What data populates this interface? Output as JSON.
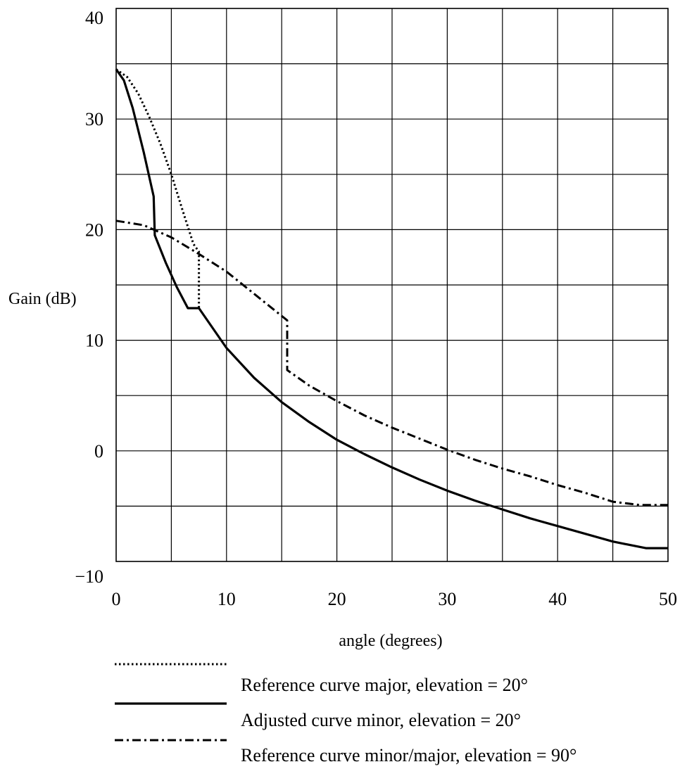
{
  "chart_data": {
    "type": "line",
    "title": "",
    "xlabel": "angle (degrees)",
    "ylabel": "Gain (dB)",
    "xlim": [
      0,
      50
    ],
    "ylim": [
      -10,
      40
    ],
    "x_ticks": [
      0,
      10,
      20,
      30,
      40,
      50
    ],
    "x_tick_labels": [
      "0",
      "10",
      "20",
      "30",
      "40",
      "50"
    ],
    "y_ticks": [
      40,
      30,
      20,
      10,
      0,
      -10
    ],
    "y_tick_labels": [
      "40",
      "30",
      "20",
      "10",
      "0",
      "−10"
    ],
    "x_gridlines": [
      5,
      10,
      15,
      20,
      25,
      30,
      35,
      40,
      45
    ],
    "y_gridlines": [
      35,
      30,
      25,
      20,
      15,
      10,
      5,
      0,
      -5
    ],
    "grid": true,
    "legend_position": "bottom",
    "series": [
      {
        "name": "Reference curve major, elevation = 20°",
        "style": "dotted",
        "color": "#000000",
        "points": [
          [
            0,
            34.5
          ],
          [
            1,
            33.8
          ],
          [
            2,
            32.3
          ],
          [
            3,
            30.2
          ],
          [
            4,
            27.8
          ],
          [
            5,
            25.0
          ],
          [
            6,
            21.8
          ],
          [
            7,
            18.7
          ],
          [
            7.5,
            18.0
          ],
          [
            7.5,
            12.8
          ]
        ]
      },
      {
        "name": "Adjusted curve minor, elevation = 20°",
        "style": "solid",
        "color": "#000000",
        "points": [
          [
            0,
            34.5
          ],
          [
            0.7,
            33.5
          ],
          [
            1.5,
            31.0
          ],
          [
            2.5,
            27.0
          ],
          [
            3.4,
            23.0
          ],
          [
            3.5,
            19.5
          ],
          [
            4.5,
            17.0
          ],
          [
            5.5,
            14.8
          ],
          [
            6.5,
            12.9
          ],
          [
            7.5,
            12.9
          ],
          [
            10,
            9.3
          ],
          [
            12.5,
            6.6
          ],
          [
            15,
            4.4
          ],
          [
            17.5,
            2.6
          ],
          [
            20,
            1.0
          ],
          [
            22.5,
            -0.3
          ],
          [
            25,
            -1.5
          ],
          [
            27.5,
            -2.6
          ],
          [
            30,
            -3.6
          ],
          [
            32.5,
            -4.5
          ],
          [
            35,
            -5.3
          ],
          [
            37.5,
            -6.1
          ],
          [
            40,
            -6.8
          ],
          [
            42.5,
            -7.5
          ],
          [
            45,
            -8.2
          ],
          [
            48,
            -8.8
          ],
          [
            50,
            -8.8
          ]
        ]
      },
      {
        "name": "Reference curve minor/major, elevation = 90°",
        "style": "dash-dot",
        "color": "#000000",
        "points": [
          [
            0,
            20.8
          ],
          [
            2.5,
            20.4
          ],
          [
            5,
            19.3
          ],
          [
            7.5,
            17.8
          ],
          [
            10,
            16.2
          ],
          [
            12.5,
            14.2
          ],
          [
            15.5,
            11.8
          ],
          [
            15.5,
            7.3
          ],
          [
            17.5,
            5.9
          ],
          [
            20,
            4.5
          ],
          [
            22.5,
            3.2
          ],
          [
            25,
            2.1
          ],
          [
            27.5,
            1.1
          ],
          [
            30,
            0.1
          ],
          [
            32.5,
            -0.8
          ],
          [
            35,
            -1.6
          ],
          [
            37.5,
            -2.3
          ],
          [
            40,
            -3.1
          ],
          [
            42.5,
            -3.8
          ],
          [
            45,
            -4.6
          ],
          [
            47.5,
            -4.9
          ],
          [
            50,
            -4.9
          ]
        ]
      }
    ]
  }
}
